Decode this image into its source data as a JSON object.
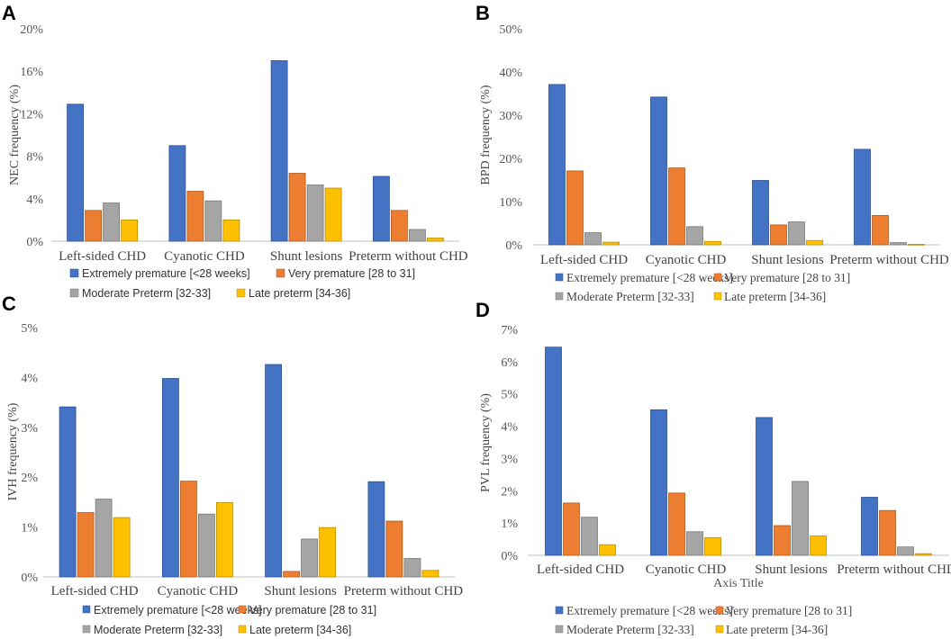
{
  "colors": {
    "extremely": "#4472C4",
    "very": "#ED7D31",
    "moderate": "#A5A5A5",
    "late": "#FFC000",
    "axis": "#bfbfbf"
  },
  "chart_data": [
    {
      "panel": "A",
      "type": "bar",
      "title": "",
      "ylabel": "NEC frequency (%)",
      "xlabel": "",
      "ylim": [
        0,
        20
      ],
      "yticks": [
        0,
        4,
        8,
        12,
        16,
        20
      ],
      "ytick_labels": [
        "0%",
        "4%",
        "8%",
        "12%",
        "16%",
        "20%"
      ],
      "categories": [
        "Left-sided CHD",
        "Cyanotic CHD",
        "Shunt lesions",
        "Preterm without CHD"
      ],
      "series": [
        {
          "name": "Extremely premature [<28 weeks]",
          "values": [
            12.9,
            9.0,
            17.0,
            6.1
          ]
        },
        {
          "name": "Very premature [28 to 31]",
          "values": [
            2.9,
            4.7,
            6.4,
            2.9
          ]
        },
        {
          "name": "Moderate Preterm [32-33]",
          "values": [
            3.6,
            3.8,
            5.3,
            1.1
          ]
        },
        {
          "name": "Late preterm [34-36]",
          "values": [
            2.0,
            2.0,
            5.0,
            0.3
          ]
        }
      ],
      "legend_font": "sans"
    },
    {
      "panel": "B",
      "type": "bar",
      "title": "",
      "ylabel": "BPD frequency (%)",
      "xlabel": "",
      "ylim": [
        0,
        50
      ],
      "yticks": [
        0,
        10,
        20,
        30,
        40,
        50
      ],
      "ytick_labels": [
        "0%",
        "10%",
        "20%",
        "30%",
        "40%",
        "50%"
      ],
      "categories": [
        "Left-sided CHD",
        "Cyanotic CHD",
        "Shunt lesions",
        "Preterm without CHD"
      ],
      "series": [
        {
          "name": "Extremely premature [<28 weeks]",
          "values": [
            37.1,
            34.2,
            14.9,
            22.1
          ]
        },
        {
          "name": "Very premature [28 to 31]",
          "values": [
            17.1,
            17.8,
            4.6,
            6.8
          ]
        },
        {
          "name": "Moderate Preterm [32-33]",
          "values": [
            2.8,
            4.2,
            5.3,
            0.5
          ]
        },
        {
          "name": "Late preterm [34-36]",
          "values": [
            0.6,
            0.8,
            1.0,
            0.1
          ]
        }
      ],
      "legend_font": "serif"
    },
    {
      "panel": "C",
      "type": "bar",
      "title": "",
      "ylabel": "IVH frequency (%)",
      "xlabel": "",
      "ylim": [
        0,
        5
      ],
      "yticks": [
        0,
        1,
        2,
        3,
        4,
        5
      ],
      "ytick_labels": [
        "0%",
        "1%",
        "2%",
        "3%",
        "4%",
        "5%"
      ],
      "categories": [
        "Left-sided CHD",
        "Cyanotic CHD",
        "Shunt lesions",
        "Preterm without CHD"
      ],
      "series": [
        {
          "name": "Extremely premature [<28 weeks]",
          "values": [
            3.41,
            3.98,
            4.26,
            1.91
          ]
        },
        {
          "name": "Very premature [28 to 31]",
          "values": [
            1.29,
            1.92,
            0.11,
            1.12
          ]
        },
        {
          "name": "Moderate Preterm [32-33]",
          "values": [
            1.56,
            1.26,
            0.76,
            0.37
          ]
        },
        {
          "name": "Late preterm [34-36]",
          "values": [
            1.19,
            1.49,
            0.99,
            0.13
          ]
        }
      ],
      "legend_font": "sans"
    },
    {
      "panel": "D",
      "type": "bar",
      "title": "",
      "ylabel": "PVL frequency (%)",
      "xlabel": "Axis Title",
      "ylim": [
        0,
        7
      ],
      "yticks": [
        0,
        1,
        2,
        3,
        4,
        5,
        6,
        7
      ],
      "ytick_labels": [
        "0%",
        "1%",
        "2%",
        "3%",
        "4%",
        "5%",
        "6%",
        "7%"
      ],
      "categories": [
        "Left-sided CHD",
        "Cyanotic CHD",
        "Shunt lesions",
        "Preterm without CHD"
      ],
      "series": [
        {
          "name": "Extremely premature [<28 weeks]",
          "values": [
            6.45,
            4.51,
            4.27,
            1.8
          ]
        },
        {
          "name": "Very premature [28 to 31]",
          "values": [
            1.62,
            1.93,
            0.92,
            1.39
          ]
        },
        {
          "name": "Moderate Preterm [32-33]",
          "values": [
            1.18,
            0.73,
            2.29,
            0.26
          ]
        },
        {
          "name": "Late preterm [34-36]",
          "values": [
            0.33,
            0.55,
            0.6,
            0.05
          ]
        }
      ],
      "legend_font": "serif"
    }
  ]
}
